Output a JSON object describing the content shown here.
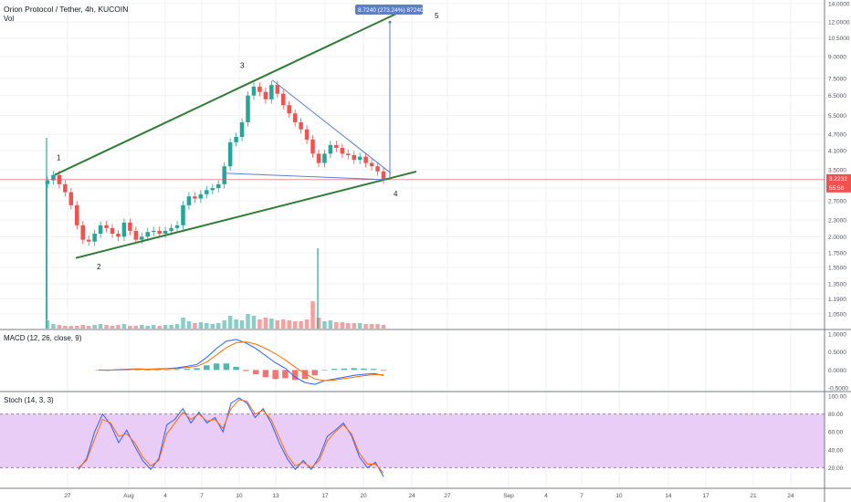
{
  "header": {
    "symbol_title": "Orion Protocol / Tether, 4h, KUCOIN",
    "vol_label": "Vol",
    "macd_label": "MACD (12, 26, close, 9)",
    "stoch_label": "Stoch (14, 3, 3)"
  },
  "price_badge": {
    "value": "3.2232",
    "countdown": "55:58"
  },
  "measure_label": "8.7240 (273.24%) 87240",
  "wave_labels": [
    "1",
    "2",
    "3",
    "4",
    "5"
  ],
  "colors": {
    "up": "#26a69a",
    "down": "#ef5350",
    "channel": "#2e7d32",
    "wedge": "#5b7fce",
    "macd": "#2962ff",
    "signal": "#ff6d00",
    "stoch_k": "#2962ff",
    "stoch_d": "#ff6d00",
    "stoch_band": "#e1bee7",
    "price_line": "#ef5350"
  },
  "chart_data": [
    {
      "type": "line",
      "title": "Orion Protocol / Tether, 4h, KUCOIN",
      "ylabel": "",
      "y_scale": "log",
      "ylim": [
        0.95,
        14.0
      ],
      "x_ticks": [
        "27",
        "Aug",
        "4",
        "7",
        "10",
        "13",
        "17",
        "20",
        "24",
        "27",
        "Sep",
        "4",
        "7",
        "10",
        "14",
        "17",
        "21",
        "24"
      ],
      "y_ticks": [
        14.0,
        12.0,
        10.5,
        9.0,
        7.5,
        6.5,
        5.5,
        4.7,
        4.1,
        3.5,
        3.0,
        2.7,
        2.3,
        2.0,
        1.75,
        1.55,
        1.35,
        1.19,
        1.05
      ],
      "y_tick_labels": [
        "14.0000",
        "12.0000",
        "10.5000",
        "9.0000",
        "7.5000",
        "6.5000",
        "5.5000",
        "4.7000",
        "4.1000",
        "3.5000",
        "3.0000",
        "2.7000",
        "2.3000",
        "2.0000",
        "1.7500",
        "1.5500",
        "1.3500",
        "1.1900",
        "1.0500"
      ],
      "series": [
        {
          "values": [
            3.2,
            3.35,
            3.1,
            2.9,
            2.6,
            2.2,
            1.95,
            1.92,
            2.05,
            2.2,
            2.15,
            2.05,
            2.0,
            2.25,
            2.1,
            1.95,
            2.0,
            2.08,
            2.1,
            2.05,
            2.1,
            2.15,
            2.2,
            2.6,
            2.8,
            2.75,
            2.85,
            2.95,
            3.0,
            3.1,
            3.6,
            4.4,
            4.6,
            5.2,
            6.5,
            7.0,
            6.7,
            6.3,
            7.1,
            6.6,
            6.0,
            5.6,
            5.2,
            4.9,
            4.5,
            4.0,
            3.7,
            4.0,
            4.3,
            4.2,
            4.0,
            3.95,
            3.8,
            3.9,
            3.7,
            3.6,
            3.45,
            3.22
          ]
        }
      ],
      "volume": [
        9,
        5,
        4,
        3,
        3,
        3,
        4,
        3,
        4,
        5,
        4,
        3,
        4,
        5,
        3,
        3,
        4,
        3,
        4,
        3,
        4,
        4,
        5,
        12,
        8,
        6,
        7,
        6,
        5,
        6,
        9,
        14,
        10,
        9,
        16,
        14,
        10,
        12,
        11,
        9,
        10,
        9,
        8,
        8,
        10,
        30,
        12,
        8,
        9,
        7,
        7,
        6,
        6,
        6,
        5,
        5,
        5,
        4
      ],
      "volume_spikes": {
        "first": 95,
        "largest_mid": 55
      },
      "wave_points": [
        {
          "label": "1",
          "price": 3.35
        },
        {
          "label": "2",
          "price": 1.68
        },
        {
          "label": "3",
          "price": 7.2
        },
        {
          "label": "4",
          "price": 3.22
        },
        {
          "label": "5",
          "price": 12.0
        }
      ]
    },
    {
      "type": "line",
      "title": "MACD (12, 26, close, 9)",
      "ylim": [
        -0.55,
        1.05
      ],
      "y_ticks": [
        1.0,
        0.5,
        0.0,
        -0.5
      ],
      "y_tick_labels": [
        "1.0000",
        "0.5000",
        "0.0000",
        "-0.5000"
      ],
      "series": [
        {
          "values": [
            0.0,
            -0.01,
            0.01,
            0.02,
            0.03,
            0.02,
            0.03,
            0.04,
            0.06,
            0.1,
            0.15,
            0.35,
            0.6,
            0.8,
            0.85,
            0.75,
            0.6,
            0.4,
            0.2,
            0.05,
            -0.2,
            -0.35,
            -0.4,
            -0.3,
            -0.25,
            -0.2,
            -0.15,
            -0.12,
            -0.1,
            -0.15
          ]
        },
        {
          "values": [
            0.0,
            0.0,
            0.0,
            0.01,
            0.02,
            0.02,
            0.02,
            0.03,
            0.04,
            0.07,
            0.1,
            0.22,
            0.42,
            0.62,
            0.76,
            0.78,
            0.72,
            0.6,
            0.45,
            0.28,
            0.08,
            -0.1,
            -0.25,
            -0.3,
            -0.28,
            -0.24,
            -0.2,
            -0.16,
            -0.13,
            -0.13
          ]
        }
      ],
      "histogram": [
        0.0,
        -0.01,
        0.01,
        0.01,
        0.01,
        0.0,
        0.01,
        0.01,
        0.02,
        0.03,
        0.05,
        0.13,
        0.18,
        0.18,
        0.09,
        -0.03,
        -0.12,
        -0.2,
        -0.25,
        -0.23,
        -0.28,
        -0.25,
        -0.15,
        0.0,
        0.03,
        0.04,
        0.05,
        0.04,
        0.03,
        -0.02
      ]
    },
    {
      "type": "line",
      "title": "Stoch (14, 3, 3)",
      "ylim": [
        0,
        100
      ],
      "y_ticks": [
        100,
        80,
        60,
        40,
        20
      ],
      "y_tick_labels": [
        "100.00",
        "80.00",
        "60.00",
        "40.00",
        "20.00"
      ],
      "band": [
        20,
        80
      ],
      "series": [
        {
          "values": [
            18,
            30,
            60,
            80,
            68,
            48,
            62,
            44,
            28,
            18,
            30,
            68,
            74,
            86,
            70,
            82,
            70,
            76,
            60,
            92,
            98,
            92,
            76,
            86,
            70,
            48,
            30,
            18,
            28,
            18,
            32,
            55,
            62,
            70,
            56,
            32,
            20,
            26,
            10
          ]
        },
        {
          "values": [
            20,
            28,
            52,
            74,
            70,
            55,
            58,
            48,
            32,
            22,
            28,
            58,
            70,
            82,
            74,
            80,
            72,
            74,
            64,
            86,
            96,
            94,
            80,
            84,
            74,
            54,
            34,
            22,
            26,
            20,
            28,
            50,
            60,
            68,
            58,
            36,
            24,
            24,
            14
          ]
        }
      ]
    }
  ]
}
